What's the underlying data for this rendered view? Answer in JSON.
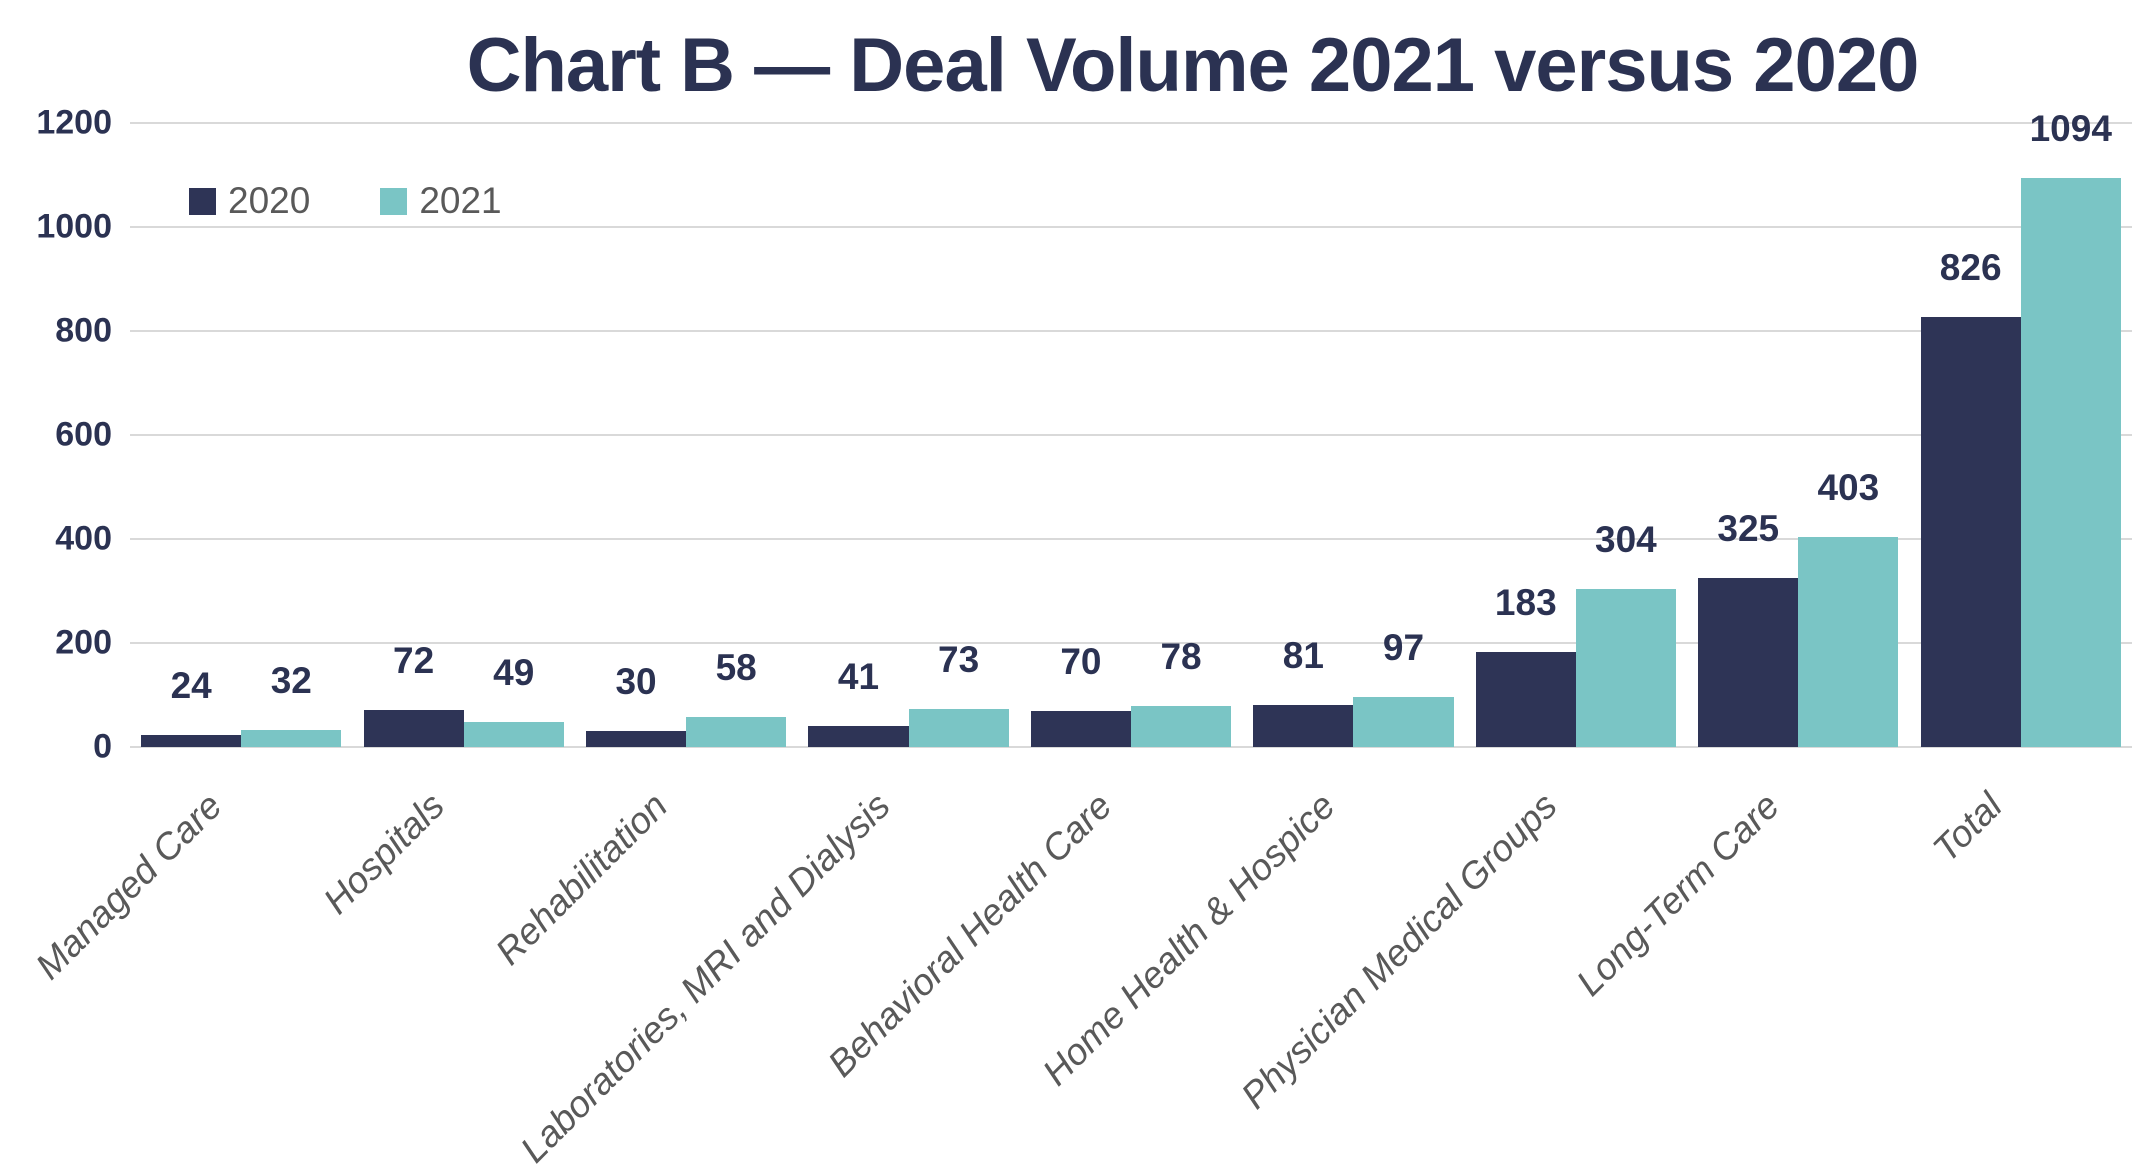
{
  "chart_data": {
    "type": "bar",
    "title": "Chart B — Deal Volume 2021 versus 2020",
    "categories": [
      "Managed Care",
      "Hospitals",
      "Rehabilitation",
      "Laboratories, MRI and Dialysis",
      "Behavioral Health Care",
      "Home Health & Hospice",
      "Physician Medical Groups",
      "Long-Term Care",
      "Total"
    ],
    "series": [
      {
        "name": "2020",
        "color": "#2E3456",
        "values": [
          24,
          72,
          30,
          41,
          70,
          81,
          183,
          325,
          826
        ]
      },
      {
        "name": "2021",
        "color": "#7AC5C5",
        "values": [
          32,
          49,
          58,
          73,
          78,
          97,
          304,
          403,
          1094
        ]
      }
    ],
    "ylim": [
      0,
      1200
    ],
    "yticks": [
      0,
      200,
      400,
      600,
      800,
      1000,
      1200
    ],
    "grid": true,
    "legend_position": "top-left",
    "data_labels": true,
    "colors": {
      "bar_2020": "#2E3456",
      "bar_2021": "#7AC5C5",
      "title_text": "#2B3252",
      "value_label_text": "#2B3252",
      "axis_tick_text": "#2B3252",
      "category_text": "#595959",
      "legend_text": "#595959",
      "gridline": "#D9D9D9",
      "background": "#FFFFFF"
    }
  }
}
